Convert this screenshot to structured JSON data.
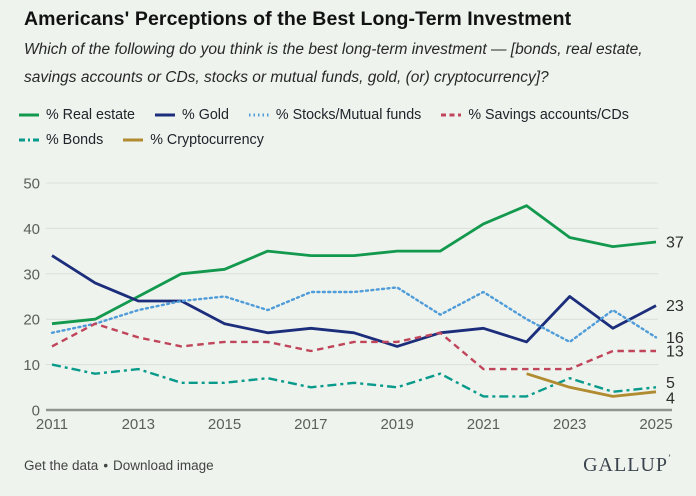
{
  "page": {
    "background": "#eef3ee"
  },
  "header": {
    "title": "Americans' Perceptions of the Best Long-Term Investment",
    "subtitle": "Which of the following do you think is the best long-term investment — [bonds, real estate, savings accounts or CDs, stocks or mutual funds, gold, (or) cryptocurrency]?"
  },
  "chart_data": {
    "type": "line",
    "title": "Americans' Perceptions of the Best Long-Term Investment",
    "x": [
      2011,
      2012,
      2013,
      2014,
      2015,
      2016,
      2017,
      2018,
      2019,
      2020,
      2021,
      2022,
      2023,
      2024,
      2025
    ],
    "series": [
      {
        "name": "% Real estate",
        "color": "#13994e",
        "style": "solid",
        "values": [
          19,
          20,
          25,
          30,
          31,
          35,
          34,
          34,
          35,
          35,
          41,
          45,
          38,
          36,
          37
        ],
        "end_label": "37"
      },
      {
        "name": "% Gold",
        "color": "#1c2e7b",
        "style": "solid",
        "values": [
          34,
          28,
          24,
          24,
          19,
          17,
          18,
          17,
          14,
          17,
          18,
          15,
          25,
          18,
          23
        ],
        "end_label": "23"
      },
      {
        "name": "% Stocks/Mutual funds",
        "color": "#4f9cd9",
        "style": "dotted",
        "values": [
          17,
          19,
          22,
          24,
          25,
          22,
          26,
          26,
          27,
          21,
          26,
          20,
          15,
          22,
          16
        ],
        "end_label": "16"
      },
      {
        "name": "% Savings accounts/CDs",
        "color": "#c0455a",
        "style": "dashed",
        "values": [
          14,
          19,
          16,
          14,
          15,
          15,
          13,
          15,
          15,
          17,
          9,
          9,
          9,
          13,
          13
        ],
        "end_label": "13"
      },
      {
        "name": "% Bonds",
        "color": "#089a8a",
        "style": "dash-dot",
        "values": [
          10,
          8,
          9,
          6,
          6,
          7,
          5,
          6,
          5,
          8,
          3,
          3,
          7,
          4,
          5
        ],
        "end_label": "5"
      },
      {
        "name": "% Cryptocurrency",
        "color": "#b08b2f",
        "style": "solid",
        "values": [
          null,
          null,
          null,
          null,
          null,
          null,
          null,
          null,
          null,
          null,
          null,
          8,
          5,
          3,
          4
        ],
        "end_label": "4"
      }
    ],
    "ylim": [
      0,
      50
    ],
    "yticks": [
      0,
      10,
      20,
      30,
      40,
      50
    ],
    "xticks": [
      2011,
      2013,
      2015,
      2017,
      2019,
      2021,
      2023,
      2025
    ],
    "grid": true,
    "legend_position": "top",
    "colors": {
      "grid_line": "#dbe0da",
      "baseline": "#90958f",
      "tick_label": "#5a5f5b",
      "end_label": "#2e2e2e"
    }
  },
  "footer": {
    "get_data": "Get the data",
    "separator": "•",
    "download": "Download image",
    "logo": "GALLUP",
    "logo_mark": "ʼ"
  }
}
